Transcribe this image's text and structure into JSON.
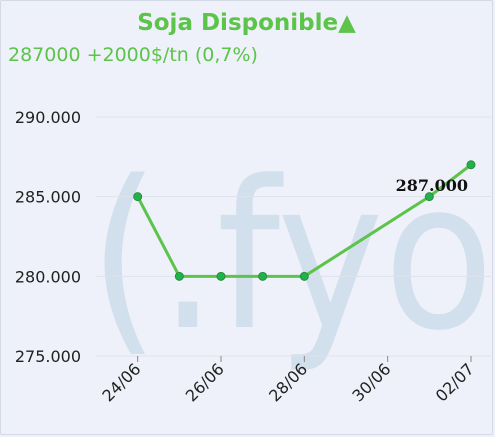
{
  "header": {
    "title": "Soja Disponible",
    "trend_symbol": "▲",
    "subtitle": "287000 +2000$/tn (0,7%)"
  },
  "watermark": {
    "text": "(.fyo"
  },
  "colors": {
    "accent": "#5cc34b",
    "point_fill": "#1fb34d",
    "gridline": "#dde2ec",
    "watermark": "#d2dfec"
  },
  "chart_data": {
    "type": "line",
    "title": "Soja Disponible",
    "x": [
      "2023-06-24",
      "2023-06-25",
      "2023-06-26",
      "2023-06-27",
      "2023-06-28",
      "2023-07-01",
      "2023-07-02"
    ],
    "y": [
      285000,
      280000,
      280000,
      280000,
      280000,
      285000,
      287000
    ],
    "xticks": [
      "24/06",
      "26/06",
      "28/06",
      "30/06",
      "02/07"
    ],
    "xtick_dates": [
      "2023-06-24",
      "2023-06-26",
      "2023-06-28",
      "2023-06-30",
      "2023-07-02"
    ],
    "yticks": [
      "275.000",
      "280.000",
      "285.000",
      "290.000"
    ],
    "ytick_values": [
      275000,
      280000,
      285000,
      290000
    ],
    "ylim": [
      275000,
      291000
    ],
    "xlim": [
      "2023-06-23",
      "2023-07-02"
    ],
    "grid": true,
    "data_label": {
      "index": 6,
      "text": "287.000"
    }
  }
}
